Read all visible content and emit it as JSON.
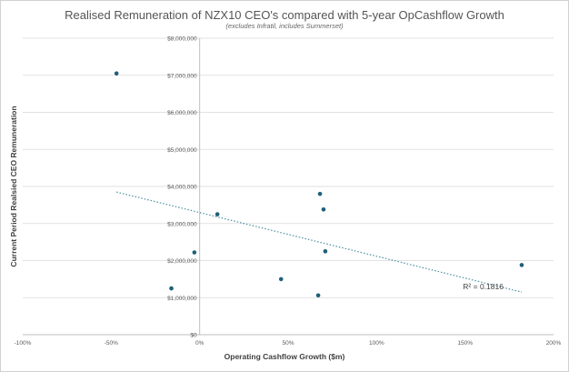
{
  "chart_data": {
    "type": "scatter",
    "title": "Realised Remuneration of NZX10 CEO's compared with 5-year OpCashflow Growth",
    "subtitle": "(excludes Infratil, includes Summerset)",
    "xlabel": "Operating Cashflow Growth ($m)",
    "ylabel": "Current Period Realsied CEO Remuneration",
    "xlim": [
      -1.0,
      2.0
    ],
    "ylim": [
      0,
      8000000
    ],
    "x_ticks": [
      -1.0,
      -0.5,
      0,
      0.5,
      1.0,
      1.5,
      2.0
    ],
    "x_tick_labels": [
      "-100%",
      "-50%",
      "0%",
      "50%",
      "100%",
      "150%",
      "200%"
    ],
    "y_ticks": [
      0,
      1000000,
      2000000,
      3000000,
      4000000,
      5000000,
      6000000,
      7000000,
      8000000
    ],
    "y_tick_labels": [
      "$0",
      "$1,000,000",
      "$2,000,000",
      "$3,000,000",
      "$4,000,000",
      "$5,000,000",
      "$6,000,000",
      "$7,000,000",
      "$8,000,000"
    ],
    "grid": "horizontal",
    "points": [
      {
        "x": -0.47,
        "y": 7050000
      },
      {
        "x": -0.16,
        "y": 1250000
      },
      {
        "x": -0.03,
        "y": 2220000
      },
      {
        "x": 0.1,
        "y": 3250000
      },
      {
        "x": 0.46,
        "y": 1500000
      },
      {
        "x": 0.67,
        "y": 1060000
      },
      {
        "x": 0.68,
        "y": 3800000
      },
      {
        "x": 0.7,
        "y": 3380000
      },
      {
        "x": 0.71,
        "y": 2250000
      },
      {
        "x": 1.82,
        "y": 1880000
      }
    ],
    "trendline": {
      "type": "linear",
      "x_range": [
        -0.47,
        1.82
      ],
      "y_start": 3850000,
      "y_end": 1150000,
      "label": "R² = 0.1816"
    },
    "colors": {
      "points": "#1f5f7a",
      "trendline": "#4a8fa0",
      "grid": "#d9d9d9",
      "axis": "#bfbfbf"
    }
  }
}
